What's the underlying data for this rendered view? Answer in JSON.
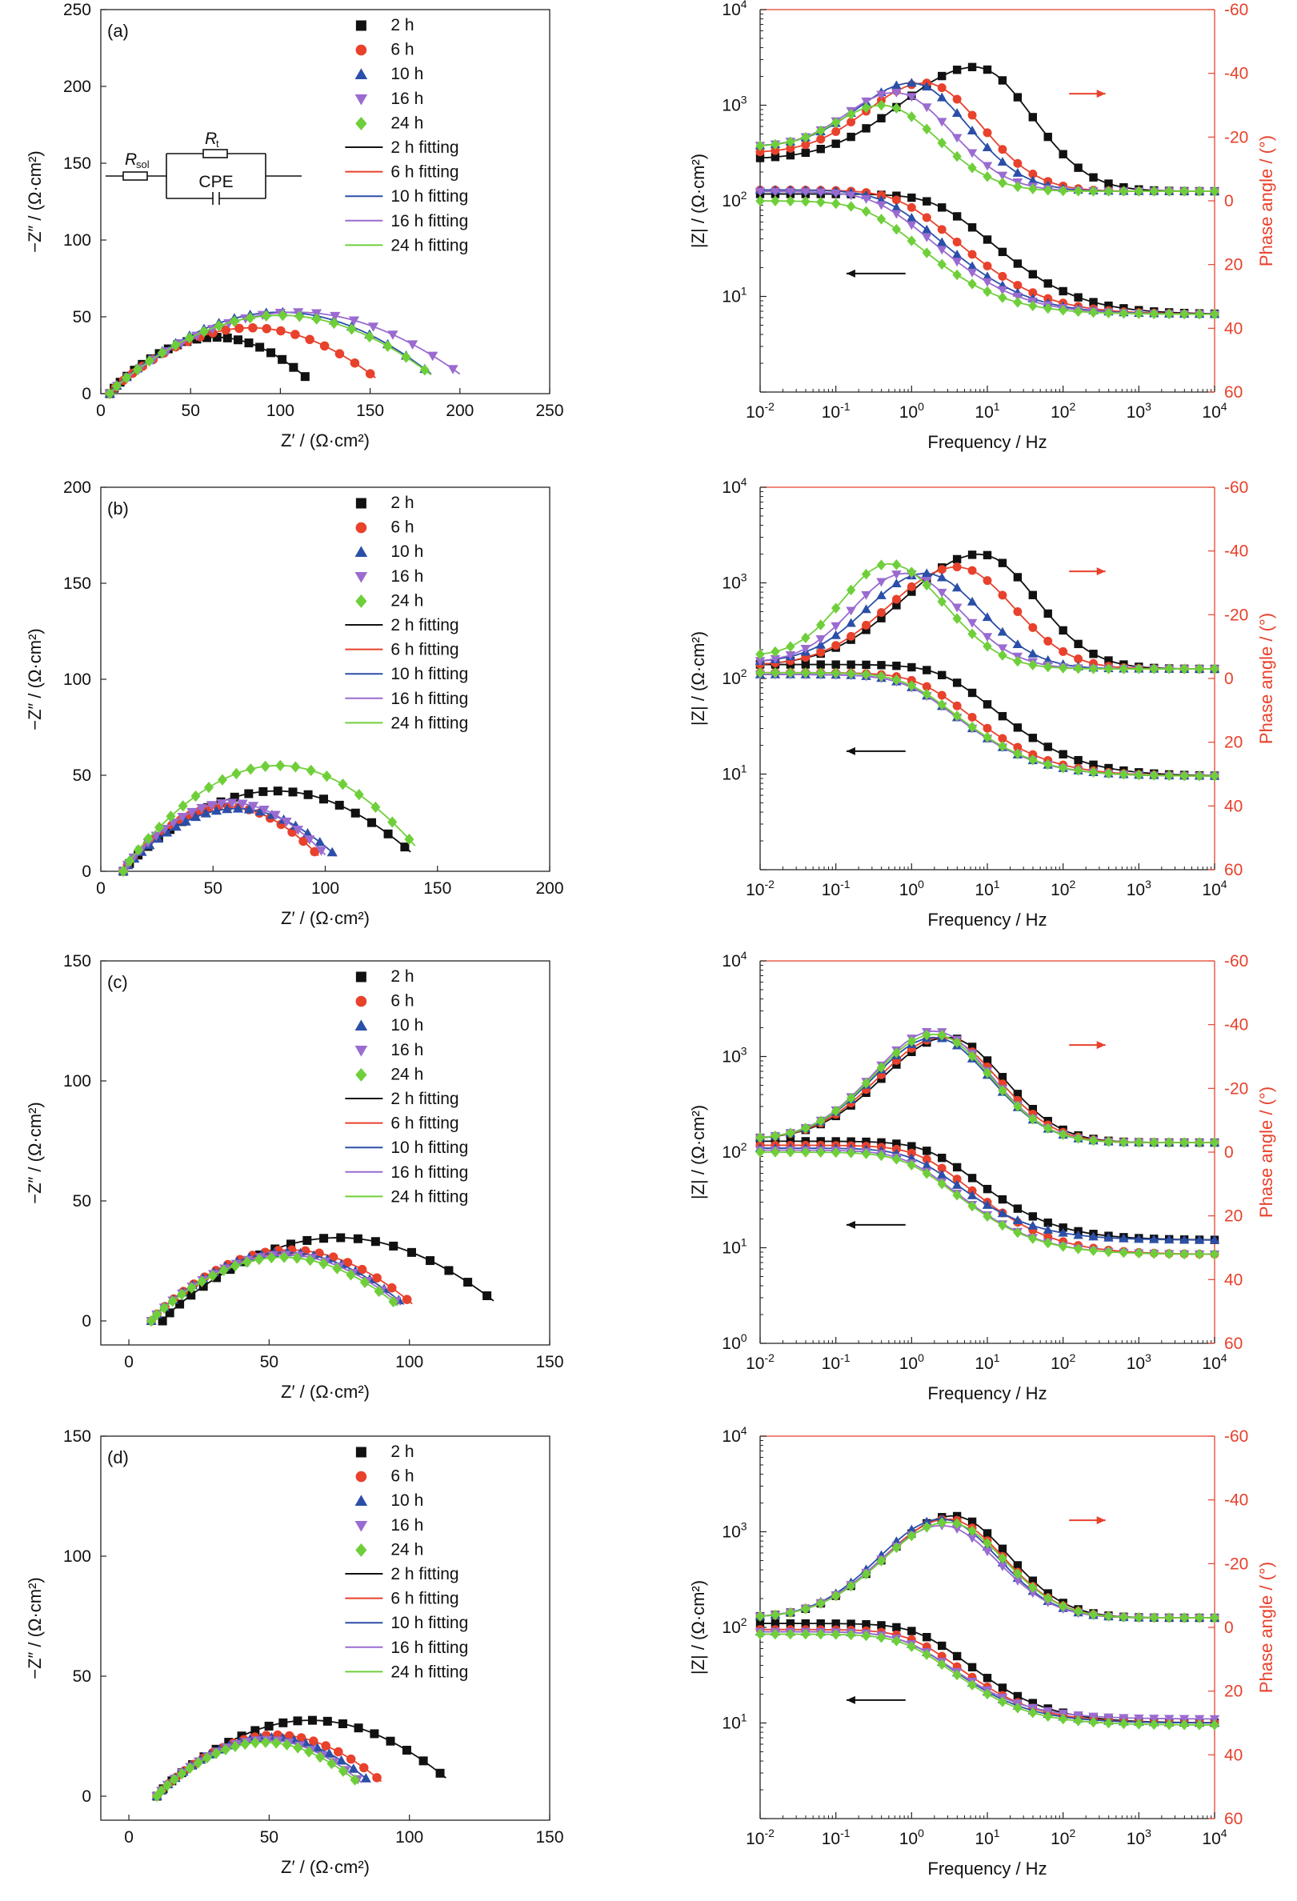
{
  "series_styles": [
    {
      "label": "2 h",
      "fit": "2 h fitting",
      "color": "#111111",
      "marker": "square"
    },
    {
      "label": "6 h",
      "fit": "6 h fitting",
      "color": "#e8412c",
      "marker": "circle"
    },
    {
      "label": "10 h",
      "fit": "10 h fitting",
      "color": "#2b4fa8",
      "marker": "triangle-up"
    },
    {
      "label": "16 h",
      "fit": "16 h fitting",
      "color": "#9a6bd0",
      "marker": "triangle-down"
    },
    {
      "label": "24 h",
      "fit": "24 h fitting",
      "color": "#6fcf3a",
      "marker": "diamond"
    }
  ],
  "circuit": {
    "rsol": "R",
    "rsol_sub": "sol",
    "rt": "R",
    "rt_sub": "t",
    "cpe": "CPE"
  },
  "chart_data": [
    {
      "type": "scatter",
      "panel": "(a)",
      "kind": "nyquist",
      "xlabel": "Z′ / (Ω·cm²)",
      "ylabel": "−Z″ / (Ω·cm²)",
      "xlim": [
        0,
        250
      ],
      "ylim": [
        0,
        250
      ],
      "xticks": [
        0,
        50,
        100,
        150,
        200,
        250
      ],
      "yticks": [
        0,
        50,
        100,
        150,
        200,
        250
      ],
      "arc_series": [
        {
          "x0": 5,
          "x1": 116,
          "ymax": 36
        },
        {
          "x0": 5,
          "x1": 153,
          "ymax": 42
        },
        {
          "x0": 5,
          "x1": 184,
          "ymax": 52
        },
        {
          "x0": 5,
          "x1": 200,
          "ymax": 52
        },
        {
          "x0": 5,
          "x1": 184,
          "ymax": 50
        }
      ]
    },
    {
      "type": "line",
      "panel": "(a)",
      "kind": "bode",
      "xlabel": "Frequency / Hz",
      "ylabel": "|Z| / (Ω·cm²)",
      "y2label": "Phase angle / (°)",
      "xlim": [
        0.01,
        10000
      ],
      "ylim": [
        1,
        10000
      ],
      "y2lim": [
        60,
        -60
      ],
      "y2ticks": [
        -60,
        -40,
        -20,
        0,
        20,
        40,
        60
      ],
      "arrow_dirs": [
        "right",
        "left"
      ],
      "bode_series": [
        {
          "z_lo": 118,
          "z_hi": 6.5,
          "z_fc": 2.5,
          "phase_peak": -42,
          "phase_fpk": 7,
          "phase_low": -13,
          "phase_hi": -3
        },
        {
          "z_lo": 130,
          "z_hi": 6.5,
          "z_fc": 0.8,
          "phase_peak": -37,
          "phase_fpk": 1.5,
          "phase_low": -15,
          "phase_hi": -3
        },
        {
          "z_lo": 130,
          "z_hi": 6.5,
          "z_fc": 0.5,
          "phase_peak": -37,
          "phase_fpk": 1,
          "phase_low": -17,
          "phase_hi": -3
        },
        {
          "z_lo": 125,
          "z_hi": 6.5,
          "z_fc": 0.4,
          "phase_peak": -34,
          "phase_fpk": 0.6,
          "phase_low": -17,
          "phase_hi": -3
        },
        {
          "z_lo": 100,
          "z_hi": 6.5,
          "z_fc": 0.3,
          "phase_peak": -30,
          "phase_fpk": 0.4,
          "phase_low": -17,
          "phase_hi": -3
        }
      ]
    },
    {
      "type": "scatter",
      "panel": "(b)",
      "kind": "nyquist",
      "xlabel": "Z′ / (Ω·cm²)",
      "ylabel": "−Z″ / (Ω·cm²)",
      "xlim": [
        0,
        200
      ],
      "ylim": [
        0,
        200
      ],
      "xticks": [
        0,
        50,
        100,
        150,
        200
      ],
      "yticks": [
        0,
        50,
        100,
        150,
        200
      ],
      "arc_series": [
        {
          "x0": 10,
          "x1": 138,
          "ymax": 41
        },
        {
          "x0": 10,
          "x1": 97,
          "ymax": 33
        },
        {
          "x0": 10,
          "x1": 105,
          "ymax": 32
        },
        {
          "x0": 10,
          "x1": 100,
          "ymax": 35
        },
        {
          "x0": 10,
          "x1": 140,
          "ymax": 54
        }
      ]
    },
    {
      "type": "line",
      "panel": "(b)",
      "kind": "bode",
      "xlabel": "Frequency / Hz",
      "ylabel": "|Z| / (Ω·cm²)",
      "y2label": "Phase angle / (°)",
      "xlim": [
        0.01,
        10000
      ],
      "ylim": [
        1,
        10000
      ],
      "y2lim": [
        60,
        -60
      ],
      "y2ticks": [
        -60,
        -40,
        -20,
        0,
        20,
        40,
        60
      ],
      "arrow_dirs": [
        "right",
        "left"
      ],
      "bode_series": [
        {
          "z_lo": 140,
          "z_hi": 9.5,
          "z_fc": 3,
          "phase_peak": -39,
          "phase_fpk": 8,
          "phase_low": -4,
          "phase_hi": -3
        },
        {
          "z_lo": 115,
          "z_hi": 9.5,
          "z_fc": 1.5,
          "phase_peak": -35,
          "phase_fpk": 4,
          "phase_low": -4,
          "phase_hi": -3
        },
        {
          "z_lo": 110,
          "z_hi": 9.5,
          "z_fc": 1,
          "phase_peak": -33,
          "phase_fpk": 1.5,
          "phase_low": -5,
          "phase_hi": -3
        },
        {
          "z_lo": 110,
          "z_hi": 9.5,
          "z_fc": 1,
          "phase_peak": -33,
          "phase_fpk": 0.8,
          "phase_low": -5,
          "phase_hi": -3
        },
        {
          "z_lo": 115,
          "z_hi": 9.5,
          "z_fc": 1,
          "phase_peak": -36,
          "phase_fpk": 0.5,
          "phase_low": -7,
          "phase_hi": -3
        }
      ]
    },
    {
      "type": "scatter",
      "panel": "(c)",
      "kind": "nyquist",
      "xlabel": "Z′ / (Ω·cm²)",
      "ylabel": "−Z″ / (Ω·cm²)",
      "xlim": [
        -10,
        150
      ],
      "ylim": [
        -10,
        150
      ],
      "xticks": [
        0,
        50,
        100,
        150
      ],
      "yticks": [
        0,
        50,
        100,
        150
      ],
      "arc_series": [
        {
          "x0": 12,
          "x1": 130,
          "ymax": 34
        },
        {
          "x0": 8,
          "x1": 101,
          "ymax": 29
        },
        {
          "x0": 8,
          "x1": 98,
          "ymax": 28
        },
        {
          "x0": 8,
          "x1": 97,
          "ymax": 27
        },
        {
          "x0": 8,
          "x1": 96,
          "ymax": 26
        }
      ]
    },
    {
      "type": "line",
      "panel": "(c)",
      "kind": "bode",
      "xlabel": "Frequency / Hz",
      "ylabel": "|Z| / (Ω·cm²)",
      "y2label": "Phase angle / (°)",
      "xlim": [
        0.01,
        10000
      ],
      "ylim": [
        1,
        10000
      ],
      "y2lim": [
        60,
        -60
      ],
      "y2ticks": [
        -60,
        -40,
        -20,
        0,
        20,
        40,
        60
      ],
      "arrow_dirs": [
        "right",
        "left"
      ],
      "bode_series": [
        {
          "z_lo": 130,
          "z_hi": 12,
          "z_fc": 2,
          "phase_peak": -36,
          "phase_fpk": 3,
          "phase_low": -4,
          "phase_hi": -3
        },
        {
          "z_lo": 118,
          "z_hi": 8.5,
          "z_fc": 1.5,
          "phase_peak": -36,
          "phase_fpk": 2.5,
          "phase_low": -4,
          "phase_hi": -3
        },
        {
          "z_lo": 110,
          "z_hi": 12,
          "z_fc": 1.2,
          "phase_peak": -36,
          "phase_fpk": 2,
          "phase_low": -4,
          "phase_hi": -3
        },
        {
          "z_lo": 105,
          "z_hi": 8.5,
          "z_fc": 1,
          "phase_peak": -38,
          "phase_fpk": 2,
          "phase_low": -4,
          "phase_hi": -3
        },
        {
          "z_lo": 100,
          "z_hi": 8.5,
          "z_fc": 1,
          "phase_peak": -37,
          "phase_fpk": 2,
          "phase_low": -4,
          "phase_hi": -3
        }
      ]
    },
    {
      "type": "scatter",
      "panel": "(d)",
      "kind": "nyquist",
      "xlabel": "Z′ / (Ω·cm²)",
      "ylabel": "−Z″ / (Ω·cm²)",
      "xlim": [
        -10,
        150
      ],
      "ylim": [
        -10,
        150
      ],
      "xticks": [
        0,
        50,
        100,
        150
      ],
      "yticks": [
        0,
        50,
        100,
        150
      ],
      "arc_series": [
        {
          "x0": 10,
          "x1": 113,
          "ymax": 31
        },
        {
          "x0": 10,
          "x1": 90,
          "ymax": 25
        },
        {
          "x0": 10,
          "x1": 86,
          "ymax": 24
        },
        {
          "x0": 10,
          "x1": 83,
          "ymax": 23
        },
        {
          "x0": 10,
          "x1": 82,
          "ymax": 22
        }
      ]
    },
    {
      "type": "line",
      "panel": "(d)",
      "kind": "bode",
      "xlabel": "Frequency / Hz",
      "ylabel": "|Z| / (Ω·cm²)",
      "y2label": "Phase angle / (°)",
      "xlim": [
        0.01,
        10000
      ],
      "ylim": [
        1,
        10000
      ],
      "y2lim": [
        60,
        -60
      ],
      "y2ticks": [
        -60,
        -40,
        -20,
        0,
        20,
        40,
        60
      ],
      "arrow_dirs": [
        "right",
        "left"
      ],
      "bode_series": [
        {
          "z_lo": 110,
          "z_hi": 10,
          "z_fc": 1.5,
          "phase_peak": -35,
          "phase_fpk": 3.5,
          "phase_low": -3,
          "phase_hi": -3
        },
        {
          "z_lo": 95,
          "z_hi": 10,
          "z_fc": 1.2,
          "phase_peak": -34,
          "phase_fpk": 3,
          "phase_low": -3,
          "phase_hi": -3
        },
        {
          "z_lo": 90,
          "z_hi": 10,
          "z_fc": 1,
          "phase_peak": -34,
          "phase_fpk": 2.5,
          "phase_low": -3,
          "phase_hi": -3
        },
        {
          "z_lo": 90,
          "z_hi": 11,
          "z_fc": 1,
          "phase_peak": -32,
          "phase_fpk": 2.5,
          "phase_low": -3,
          "phase_hi": -3
        },
        {
          "z_lo": 85,
          "z_hi": 9.5,
          "z_fc": 1,
          "phase_peak": -33,
          "phase_fpk": 3,
          "phase_low": -3,
          "phase_hi": -3
        }
      ]
    }
  ]
}
